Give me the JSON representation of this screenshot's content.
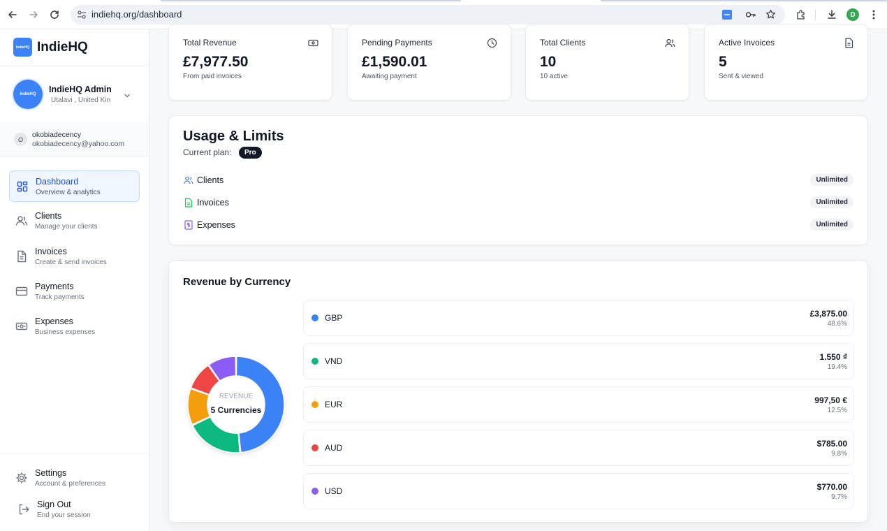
{
  "browser": {
    "url": "indiehq.org/dashboard",
    "profile_initial": "D",
    "colors": {
      "profile": "#34a853",
      "extension": "#4285f4"
    }
  },
  "sidebar": {
    "logo_text": "IndieHQ",
    "brand": "IndieHQ",
    "profile": {
      "avatar_text": "IndieHQ",
      "name": "IndieHQ Admin",
      "location": "Utalavi , United Kin"
    },
    "account": {
      "initial": "O",
      "username": "okobiadecency",
      "email": "okobiadecency@yahoo.com"
    },
    "nav": [
      {
        "label": "Dashboard",
        "sub": "Overview & analytics",
        "icon": "grid-icon",
        "active": true
      },
      {
        "label": "Clients",
        "sub": "Manage your clients",
        "icon": "users-icon",
        "active": false
      },
      {
        "label": "Invoices",
        "sub": "Create & send invoices",
        "icon": "document-icon",
        "active": false
      },
      {
        "label": "Payments",
        "sub": "Track payments",
        "icon": "credit-card-icon",
        "active": false
      },
      {
        "label": "Expenses",
        "sub": "Business expenses",
        "icon": "banknote-icon",
        "active": false
      }
    ],
    "footer": [
      {
        "label": "Settings",
        "sub": "Account & preferences",
        "icon": "gear-icon"
      },
      {
        "label": "Sign Out",
        "sub": "End your session",
        "icon": "sign-out-icon"
      }
    ]
  },
  "stats": [
    {
      "label": "Total Revenue",
      "value": "£7,977.50",
      "sub": "From paid invoices",
      "icon": "banknote-icon"
    },
    {
      "label": "Pending Payments",
      "value": "£1,590.01",
      "sub": "Awaiting payment",
      "icon": "clock-icon"
    },
    {
      "label": "Total Clients",
      "value": "10",
      "sub": "10 active",
      "icon": "users-icon"
    },
    {
      "label": "Active Invoices",
      "value": "5",
      "sub": "Sent & viewed",
      "icon": "document-icon"
    }
  ],
  "usage": {
    "title": "Usage & Limits",
    "plan_label": "Current plan:",
    "plan": "Pro",
    "rows": [
      {
        "label": "Clients",
        "limit": "Unlimited",
        "icon": "users-icon",
        "color": "#3b82f6"
      },
      {
        "label": "Invoices",
        "limit": "Unlimited",
        "icon": "document-icon",
        "color": "#22c55e"
      },
      {
        "label": "Expenses",
        "limit": "Unlimited",
        "icon": "receipt-icon",
        "color": "#8b5cf6"
      }
    ]
  },
  "revenue": {
    "title": "Revenue by Currency",
    "center_label": "REVENUE",
    "center_value": "5 Currencies",
    "currencies": [
      {
        "code": "GBP",
        "amount": "£3,875.00",
        "percent": "48.6%",
        "share": 48.6,
        "color": "#3b82f6"
      },
      {
        "code": "VND",
        "amount": "1.550 ₫",
        "percent": "19.4%",
        "share": 19.4,
        "color": "#10b981"
      },
      {
        "code": "EUR",
        "amount": "997,50 €",
        "percent": "12.5%",
        "share": 12.5,
        "color": "#f59e0b"
      },
      {
        "code": "AUD",
        "amount": "$785.00",
        "percent": "9.8%",
        "share": 9.8,
        "color": "#ef4444"
      },
      {
        "code": "USD",
        "amount": "$770.00",
        "percent": "9.7%",
        "share": 9.7,
        "color": "#8b5cf6"
      }
    ]
  }
}
